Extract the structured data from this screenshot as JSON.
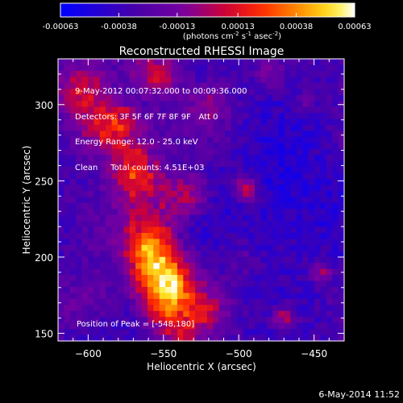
{
  "chart_data": {
    "type": "heatmap",
    "title": "Reconstructed RHESSI Image",
    "xlabel": "Heliocentric X (arcsec)",
    "ylabel": "Heliocentric Y (arcsec)",
    "xlim": [
      -620,
      -430
    ],
    "ylim": [
      145,
      330
    ],
    "x_ticks": [
      -600,
      -550,
      -500,
      -450
    ],
    "y_ticks": [
      150,
      200,
      250,
      300
    ],
    "colorbar": {
      "min": -0.00063,
      "max": 0.00063,
      "ticks": [
        "-0.00063",
        "-0.00038",
        "-0.00013",
        "0.00013",
        "0.00038",
        "0.00063"
      ],
      "tick_values": [
        -0.00063,
        -0.00038,
        -0.00013,
        0.00013,
        0.00038,
        0.00063
      ],
      "unit_label_parts": [
        "(photons cm",
        "-2",
        " s",
        "-1",
        " asec",
        "-2",
        ")"
      ]
    },
    "annotations": [
      "9-May-2012 00:07:32.000 to 00:09:36.000",
      "Detectors: 3F 5F 6F 7F 8F 9F   Att 0",
      "Energy Range: 12.0 - 25.0 keV",
      "Clean     Total counts: 4.51E+03"
    ],
    "peak_label": "Position of Peak = [-548,180]",
    "peak": [
      -548,
      180
    ],
    "sources": [
      {
        "x": -548,
        "y": 180,
        "sigma": 14,
        "amp": 0.00063
      },
      {
        "x": -560,
        "y": 205,
        "sigma": 12,
        "amp": 0.00045
      },
      {
        "x": -535,
        "y": 240,
        "sigma": 10,
        "amp": 0.00038
      },
      {
        "x": -570,
        "y": 255,
        "sigma": 11,
        "amp": 0.0003
      },
      {
        "x": -590,
        "y": 285,
        "sigma": 13,
        "amp": 0.00042
      },
      {
        "x": -605,
        "y": 310,
        "sigma": 12,
        "amp": 0.0004
      },
      {
        "x": -555,
        "y": 320,
        "sigma": 11,
        "amp": 0.00038
      },
      {
        "x": -520,
        "y": 300,
        "sigma": 9,
        "amp": 0.00022
      },
      {
        "x": -495,
        "y": 245,
        "sigma": 6,
        "amp": 0.0005
      },
      {
        "x": -470,
        "y": 160,
        "sigma": 6,
        "amp": 0.0004
      },
      {
        "x": -445,
        "y": 190,
        "sigma": 5,
        "amp": 0.0003
      },
      {
        "x": -520,
        "y": 165,
        "sigma": 10,
        "amp": 0.00025
      },
      {
        "x": -600,
        "y": 170,
        "sigma": 12,
        "amp": 0.00018
      },
      {
        "x": -500,
        "y": 200,
        "sigma": 8,
        "amp": 0.00012
      },
      {
        "x": -455,
        "y": 300,
        "sigma": 5,
        "amp": 0.00015
      },
      {
        "x": -480,
        "y": 320,
        "sigma": 6,
        "amp": 0.0002
      }
    ]
  },
  "timestamp": "6-May-2014 11:52"
}
